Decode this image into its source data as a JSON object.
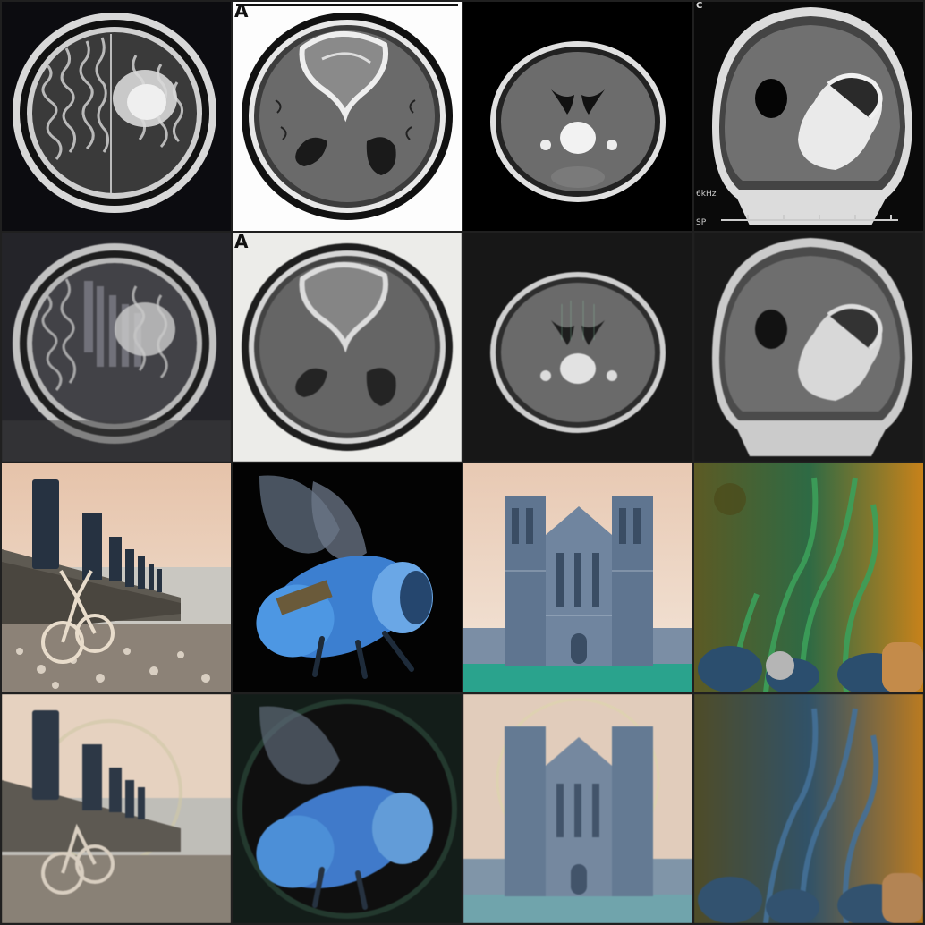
{
  "grid": {
    "rows": 4,
    "cols": 4,
    "tiles": [
      {
        "row": 1,
        "col": 1,
        "subject": "axial-mri-t2",
        "letter": ""
      },
      {
        "row": 1,
        "col": 2,
        "subject": "axial-mri-ring-enhancing",
        "letter": "A"
      },
      {
        "row": 1,
        "col": 3,
        "subject": "axial-mri-thalamic-lesion",
        "letter": ""
      },
      {
        "row": 1,
        "col": 4,
        "subject": "coronal-mri-large-lesion",
        "letter": "C",
        "scanner_text": "6kHz",
        "scanner_text_2": "SP"
      },
      {
        "row": 2,
        "col": 1,
        "subject": "axial-mri-t2-reconstructed"
      },
      {
        "row": 2,
        "col": 2,
        "subject": "axial-mri-ring-enhancing-reconstructed",
        "letter": "A"
      },
      {
        "row": 2,
        "col": 3,
        "subject": "axial-mri-thalamic-lesion-reconstructed"
      },
      {
        "row": 2,
        "col": 4,
        "subject": "coronal-mri-large-lesion-reconstructed"
      },
      {
        "row": 3,
        "col": 1,
        "subject": "beach-groynes-bicycle"
      },
      {
        "row": 3,
        "col": 2,
        "subject": "blue-bee-macro"
      },
      {
        "row": 3,
        "col": 3,
        "subject": "gothic-cathedral-facade"
      },
      {
        "row": 3,
        "col": 4,
        "subject": "underwater-coral-kelp"
      },
      {
        "row": 4,
        "col": 1,
        "subject": "beach-groynes-bicycle-reconstructed"
      },
      {
        "row": 4,
        "col": 2,
        "subject": "blue-bee-macro-reconstructed"
      },
      {
        "row": 4,
        "col": 3,
        "subject": "gothic-cathedral-facade-reconstructed"
      },
      {
        "row": 4,
        "col": 4,
        "subject": "underwater-coral-kelp-reconstructed"
      }
    ]
  },
  "labels": {
    "panel_a": "A",
    "panel_a2": "A",
    "panel_c": "C",
    "scanner_khz": "6kHz",
    "scanner_sp": "SP"
  },
  "colors": {
    "background": "#202020",
    "mri_dark": "#0a0a0a",
    "mri_tissue": "#6e6e6e",
    "lesion_bright": "#eeeeee",
    "sky_peach": "#e9c9b2",
    "sea_grey": "#c9c7c1",
    "bee_blue": "#3c7fd0",
    "cathedral_stone": "#6d7f95",
    "lawn_teal": "#2aa38d",
    "reef_green": "#2e6a44",
    "reef_orange": "#c8821a"
  }
}
